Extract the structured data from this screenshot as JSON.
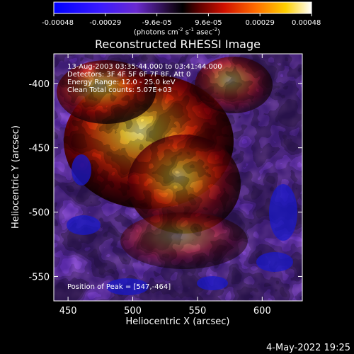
{
  "chart_data": {
    "type": "heatmap",
    "title": "Reconstructed RHESSI Image",
    "xlabel": "Heliocentric X (arcsec)",
    "ylabel": "Heliocentric Y (arcsec)",
    "xlim": [
      439,
      631
    ],
    "ylim": [
      -569,
      -377
    ],
    "xticks": [
      450,
      500,
      550,
      600
    ],
    "yticks": [
      -400,
      -450,
      -500,
      -550
    ],
    "annotations": [
      "13-Aug-2003 03:35:44.000 to 03:41:44.000",
      "Detectors: 3F 4F 5F 6F 7F 8F, Att 0",
      "Energy Range: 12.0 - 25.0 keV",
      "Clean    Total counts: 5.07E+03"
    ],
    "peak_label": "Position of Peak = [547,-464]",
    "peak": [
      547,
      -464
    ],
    "colorbar": {
      "ticks": [
        "-0.00048",
        "-0.00029",
        "-9.6e-05",
        "9.6e-05",
        "0.00029",
        "0.00048"
      ],
      "range": [
        -0.00048,
        0.00048
      ],
      "units_prefix": "(photons cm",
      "units_sup1": "-2",
      "units_mid1": " s",
      "units_sup2": "-1",
      "units_mid2": " asec",
      "units_sup3": "-2",
      "units_suffix": ")"
    },
    "colormap": "RHESSI blue-to-white (blue, purple, black, red, orange, yellow, white)",
    "grid": false
  },
  "footer": {
    "timestamp": "4-May-2022 19:25"
  }
}
